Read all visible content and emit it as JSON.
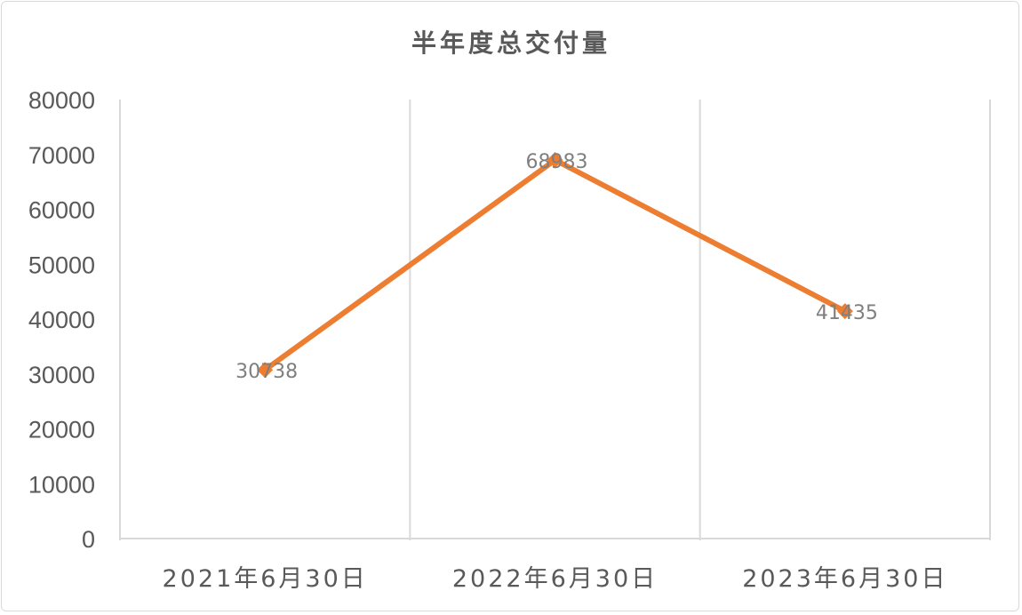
{
  "chart_data": {
    "type": "line",
    "title": "半年度总交付量",
    "xlabel": "",
    "ylabel": "",
    "categories": [
      "2021年6月30日",
      "2022年6月30日",
      "2023年6月30日"
    ],
    "series": [
      {
        "values": [
          30738,
          68983,
          41435
        ],
        "data_labels": [
          "30738",
          "68983",
          "41435"
        ]
      }
    ],
    "ylim": [
      0,
      80000
    ],
    "y_ticks": [
      0,
      10000,
      20000,
      30000,
      40000,
      50000,
      60000,
      70000,
      80000
    ],
    "y_tick_labels": [
      "0",
      "10000",
      "20000",
      "30000",
      "40000",
      "50000",
      "60000",
      "70000",
      "80000"
    ],
    "grid": "vertical category separators",
    "legend": "none",
    "marker": "diamond",
    "colors": {
      "series": "#ED7D31",
      "grid": "#D9D9D9",
      "text": "#595959",
      "data_label": "#7F7F7F"
    }
  }
}
